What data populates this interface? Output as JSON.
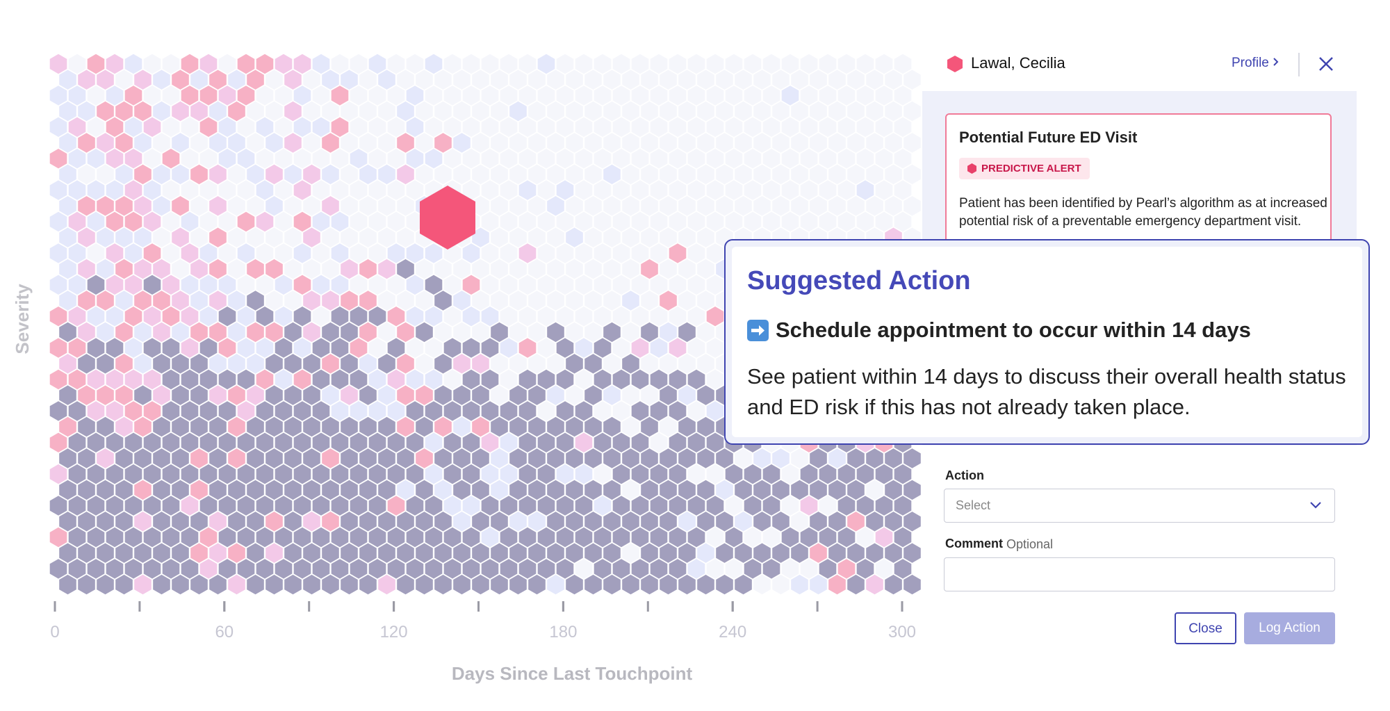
{
  "chart": {
    "y_axis_label": "Severity",
    "x_axis_label": "Days Since Last Touchpoint",
    "xlim": [
      0,
      300
    ],
    "xticks": [
      0,
      60,
      120,
      180,
      240,
      300
    ]
  },
  "panel": {
    "patient_name": "Lawal, Cecilia",
    "profile_link": "Profile",
    "alert": {
      "title": "Potential Future ED Visit",
      "badge": "PREDICTIVE ALERT",
      "description": "Patient has been identified by Pearl’s algorithm as at increased potential risk of a preventable emergency department visit."
    },
    "form": {
      "action_label": "Action",
      "action_placeholder": "Select",
      "comment_label": "Comment",
      "comment_hint": "Optional"
    },
    "buttons": {
      "close": "Close",
      "log_action": "Log Action"
    }
  },
  "suggested_action": {
    "title": "Suggested Action",
    "action": "Schedule appointment to occur within 14 days",
    "details": "See patient within 14 days to discuss their overall health status and ED risk if this has not already taken place."
  }
}
